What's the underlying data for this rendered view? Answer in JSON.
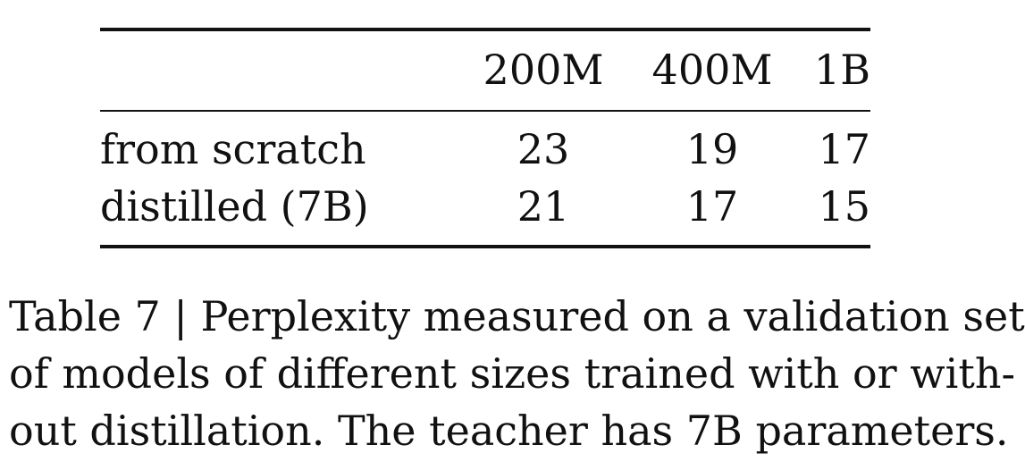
{
  "table": {
    "columns": [
      "200M",
      "400M",
      "1B"
    ],
    "rows": [
      {
        "label": "from scratch",
        "values": [
          "23",
          "19",
          "17"
        ]
      },
      {
        "label": "distilled (7B)",
        "values": [
          "21",
          "17",
          "15"
        ]
      }
    ]
  },
  "caption": {
    "lines": [
      "Table 7 | Perplexity measured on a validation set",
      "of models of different sizes trained with or with-",
      "out distillation. The teacher has 7B parameters."
    ]
  }
}
